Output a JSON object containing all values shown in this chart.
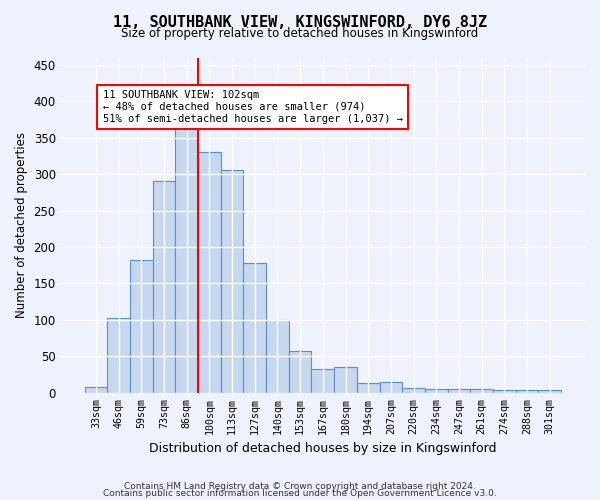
{
  "title": "11, SOUTHBANK VIEW, KINGSWINFORD, DY6 8JZ",
  "subtitle": "Size of property relative to detached houses in Kingswinford",
  "xlabel": "Distribution of detached houses by size in Kingswinford",
  "ylabel": "Number of detached properties",
  "categories": [
    "33sqm",
    "46sqm",
    "59sqm",
    "73sqm",
    "86sqm",
    "100sqm",
    "113sqm",
    "127sqm",
    "140sqm",
    "153sqm",
    "167sqm",
    "180sqm",
    "194sqm",
    "207sqm",
    "220sqm",
    "234sqm",
    "247sqm",
    "261sqm",
    "274sqm",
    "288sqm",
    "301sqm"
  ],
  "bar_heights": [
    8,
    103,
    182,
    290,
    365,
    330,
    305,
    178,
    100,
    58,
    32,
    35,
    13,
    15,
    7,
    5,
    5,
    5,
    4,
    4,
    4
  ],
  "bar_color": "#c5d8f0",
  "bar_edge_color": "#5b8fc9",
  "vline_color": "red",
  "annotation_text": "11 SOUTHBANK VIEW: 102sqm\n← 48% of detached houses are smaller (974)\n51% of semi-detached houses are larger (1,037) →",
  "annotation_box_color": "white",
  "annotation_box_edge": "red",
  "ylim": [
    0,
    460
  ],
  "yticks": [
    0,
    50,
    100,
    150,
    200,
    250,
    300,
    350,
    400,
    450
  ],
  "footer_line1": "Contains HM Land Registry data © Crown copyright and database right 2024.",
  "footer_line2": "Contains public sector information licensed under the Open Government Licence v3.0.",
  "bg_color": "#eef2fa",
  "plot_bg_color": "#eef2fa"
}
